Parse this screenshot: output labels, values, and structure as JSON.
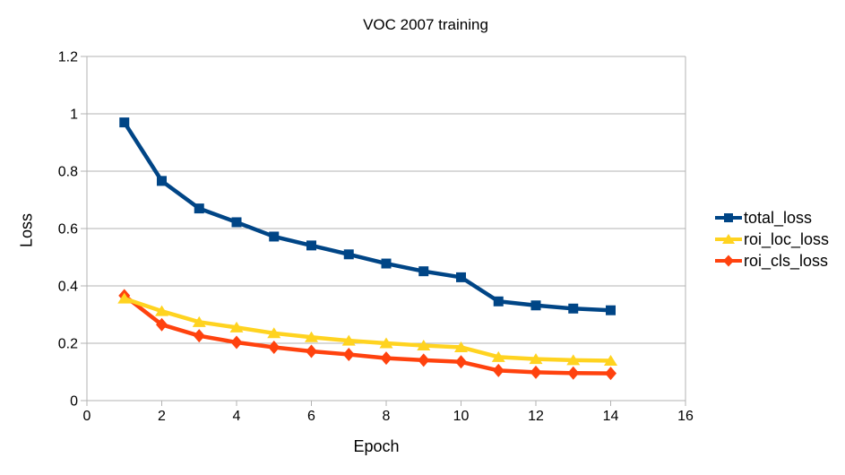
{
  "chart_data": {
    "type": "line",
    "title": "VOC 2007 training",
    "xlabel": "Epoch",
    "ylabel": "Loss",
    "xlim": [
      0,
      16
    ],
    "ylim": [
      0,
      1.2
    ],
    "x_ticks": [
      0,
      2,
      4,
      6,
      8,
      10,
      12,
      14,
      16
    ],
    "x_tick_labels": [
      "0",
      "2",
      "4",
      "6",
      "8",
      "10",
      "12",
      "14",
      "16"
    ],
    "y_ticks": [
      0,
      0.2,
      0.4,
      0.6,
      0.8,
      1,
      1.2
    ],
    "y_tick_labels": [
      "0",
      "0.2",
      "0.4",
      "0.6",
      "0.8",
      "1",
      "1.2"
    ],
    "grid": "horizontal",
    "legend_position": "right",
    "x": [
      1,
      2,
      3,
      4,
      5,
      6,
      7,
      8,
      9,
      10,
      11,
      12,
      13,
      14
    ],
    "series": [
      {
        "name": "total_loss",
        "color": "#004586",
        "marker": "square",
        "values": [
          0.97,
          0.766,
          0.67,
          0.622,
          0.572,
          0.541,
          0.51,
          0.478,
          0.451,
          0.43,
          0.346,
          0.332,
          0.321,
          0.315
        ]
      },
      {
        "name": "roi_loc_loss",
        "color": "#ffd320",
        "marker": "triangle",
        "values": [
          0.356,
          0.312,
          0.274,
          0.255,
          0.235,
          0.221,
          0.209,
          0.2,
          0.192,
          0.186,
          0.152,
          0.145,
          0.141,
          0.139
        ]
      },
      {
        "name": "roi_cls_loss",
        "color": "#ff420e",
        "marker": "diamond",
        "values": [
          0.366,
          0.265,
          0.226,
          0.203,
          0.186,
          0.172,
          0.161,
          0.148,
          0.141,
          0.135,
          0.105,
          0.099,
          0.096,
          0.095
        ]
      }
    ],
    "colors": {
      "grid": "#b3b3b3",
      "axis": "#b3b3b3",
      "text": "#000000",
      "background": "#ffffff"
    }
  }
}
